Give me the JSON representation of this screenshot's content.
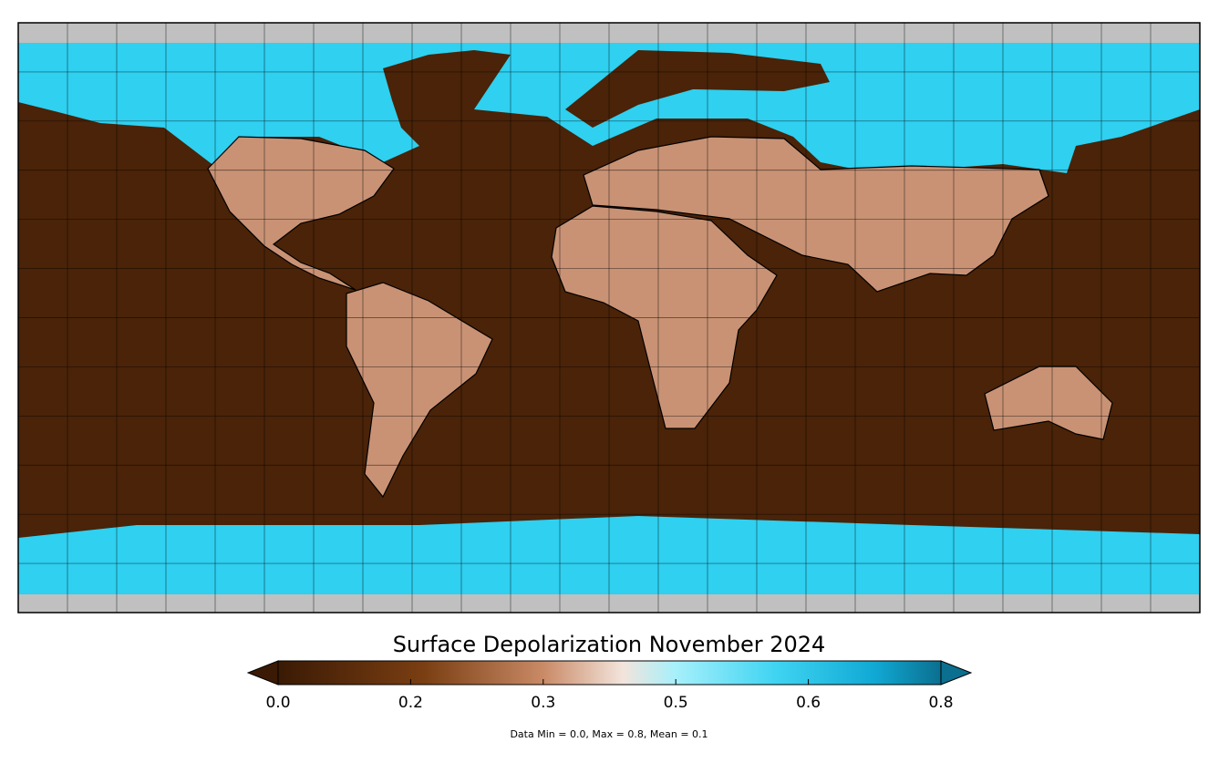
{
  "map": {
    "colorbar": {
      "title": "Surface Depolarization November 2024",
      "range": [
        0,
        0.8
      ],
      "ticks": [
        {
          "value": 0,
          "label": "0.0"
        },
        {
          "value": 0.16,
          "label": "0.2"
        },
        {
          "value": 0.32,
          "label": "0.3"
        },
        {
          "value": 0.48,
          "label": "0.5"
        },
        {
          "value": 0.64,
          "label": "0.6"
        },
        {
          "value": 0.8,
          "label": "0.8"
        }
      ]
    },
    "footnote": "Data Min = 0.0, Max = 0.8, Mean = 0.1"
  }
}
